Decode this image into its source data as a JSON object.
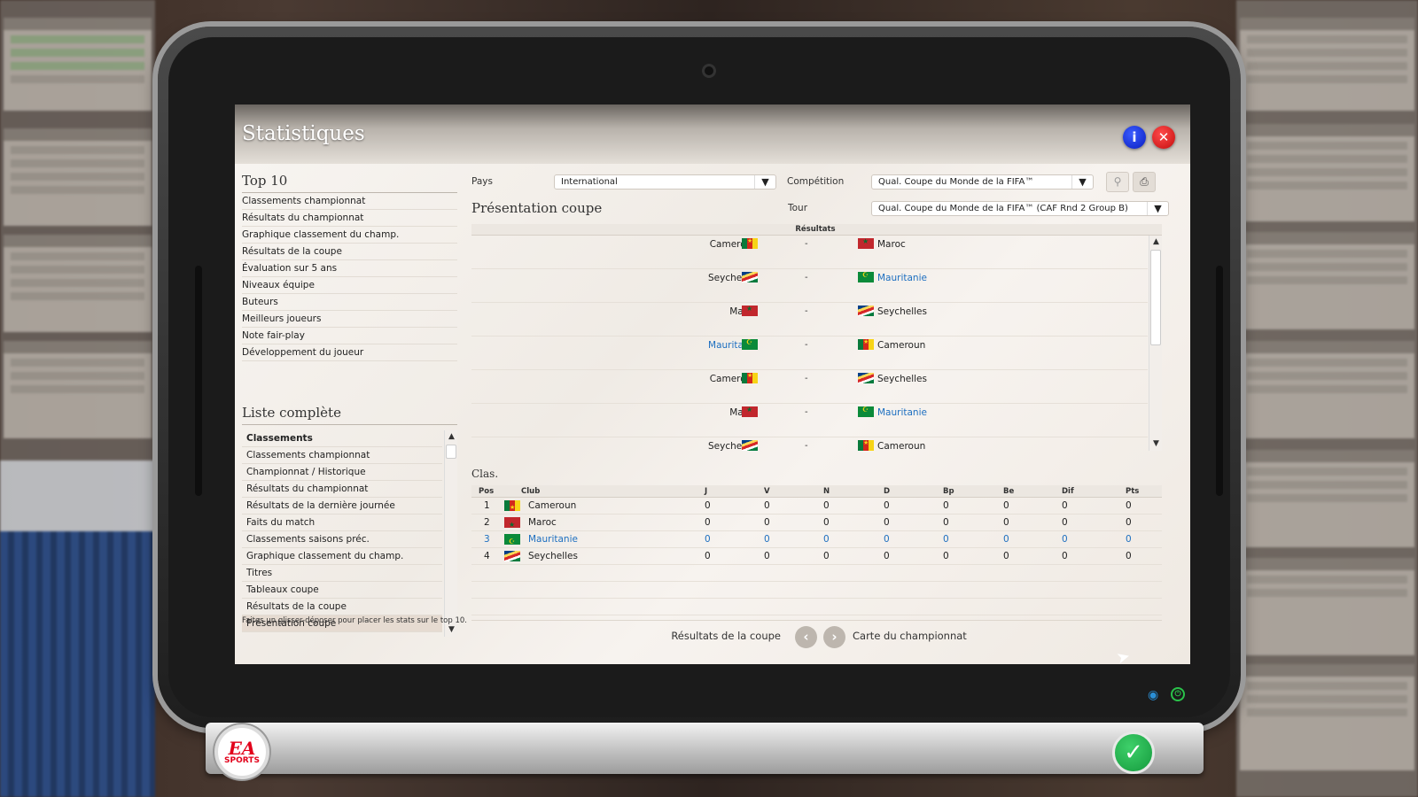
{
  "window": {
    "title": "Statistiques"
  },
  "top10": {
    "title": "Top 10",
    "items": [
      "Classements championnat",
      "Résultats du championnat",
      "Graphique classement du champ.",
      "Résultats de la coupe",
      "Évaluation sur 5 ans",
      "Niveaux équipe",
      "Buteurs",
      "Meilleurs joueurs",
      "Note fair-play",
      "Développement du joueur"
    ]
  },
  "full_list": {
    "title": "Liste complète",
    "items": [
      "Classements",
      "Classements championnat",
      "Championnat / Historique",
      "Résultats du championnat",
      "Résultats de la dernière journée",
      "Faits du match",
      "Classements saisons préc.",
      "Graphique classement du champ.",
      "Titres",
      "Tableaux coupe",
      "Résultats de la coupe",
      "Présentation coupe"
    ],
    "active": "Présentation coupe"
  },
  "hint": "Faites un glisser-déposer pour placer les stats sur le top 10.",
  "filters": {
    "pays_label": "Pays",
    "pays_value": "International",
    "competition_label": "Compétition",
    "competition_value": "Qual. Coupe du Monde de la FIFA™",
    "tour_label": "Tour",
    "tour_value": "Qual. Coupe du Monde de la FIFA™ (CAF Rnd 2 Group B)"
  },
  "section_title": "Présentation coupe",
  "results": {
    "header": "Résultats",
    "separator": "-",
    "matches": [
      {
        "home": "Cameroun",
        "home_flag": "cmr",
        "away": "Maroc",
        "away_flag": "mar",
        "home_link": false,
        "away_link": false
      },
      {
        "home": "Seychelles",
        "home_flag": "syc",
        "away": "Mauritanie",
        "away_flag": "mrt",
        "home_link": false,
        "away_link": true
      },
      {
        "home": "Maroc",
        "home_flag": "mar",
        "away": "Seychelles",
        "away_flag": "syc",
        "home_link": false,
        "away_link": false
      },
      {
        "home": "Mauritanie",
        "home_flag": "mrt",
        "away": "Cameroun",
        "away_flag": "cmr",
        "home_link": true,
        "away_link": false
      },
      {
        "home": "Cameroun",
        "home_flag": "cmr",
        "away": "Seychelles",
        "away_flag": "syc",
        "home_link": false,
        "away_link": false
      },
      {
        "home": "Maroc",
        "home_flag": "mar",
        "away": "Mauritanie",
        "away_flag": "mrt",
        "home_link": false,
        "away_link": true
      },
      {
        "home": "Seychelles",
        "home_flag": "syc",
        "away": "Cameroun",
        "away_flag": "cmr",
        "home_link": false,
        "away_link": false
      }
    ]
  },
  "standings": {
    "title": "Clas.",
    "columns": [
      "Pos",
      "Club",
      "J",
      "V",
      "N",
      "D",
      "Bp",
      "Be",
      "Dif",
      "Pts"
    ],
    "rows": [
      {
        "pos": "1",
        "club": "Cameroun",
        "flag": "cmr",
        "link": false,
        "j": "0",
        "v": "0",
        "n": "0",
        "d": "0",
        "bp": "0",
        "be": "0",
        "dif": "0",
        "pts": "0"
      },
      {
        "pos": "2",
        "club": "Maroc",
        "flag": "mar",
        "link": false,
        "j": "0",
        "v": "0",
        "n": "0",
        "d": "0",
        "bp": "0",
        "be": "0",
        "dif": "0",
        "pts": "0"
      },
      {
        "pos": "3",
        "club": "Mauritanie",
        "flag": "mrt",
        "link": true,
        "j": "0",
        "v": "0",
        "n": "0",
        "d": "0",
        "bp": "0",
        "be": "0",
        "dif": "0",
        "pts": "0"
      },
      {
        "pos": "4",
        "club": "Seychelles",
        "flag": "syc",
        "link": false,
        "j": "0",
        "v": "0",
        "n": "0",
        "d": "0",
        "bp": "0",
        "be": "0",
        "dif": "0",
        "pts": "0"
      }
    ]
  },
  "navigation": {
    "prev_label": "Résultats de la coupe",
    "next_label": "Carte du championnat"
  },
  "brand": {
    "ea": "EA",
    "sports": "SPORTS"
  },
  "colors": {
    "link": "#1d6fc0",
    "info": "#0a1ec0",
    "close": "#c40d0d",
    "confirm": "#159a3d"
  }
}
